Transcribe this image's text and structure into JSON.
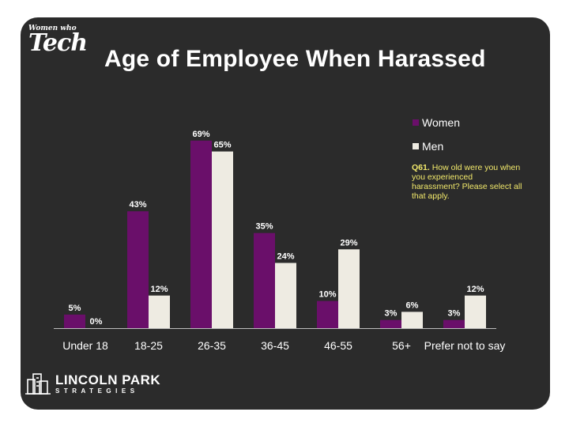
{
  "title": "Age of Employee When Harassed",
  "brand": {
    "line1": "Women who",
    "line2": "Tech"
  },
  "legend": [
    {
      "label": "Women",
      "color": "#6a0f6a"
    },
    {
      "label": "Men",
      "color": "#eeebe2"
    }
  ],
  "note": {
    "label": "Q61.",
    "text": "How old were you when you experienced harassment? Please select all that apply."
  },
  "footer": {
    "line1": "LINCOLN PARK",
    "line2": "STRATEGIES"
  },
  "chart_data": {
    "type": "bar",
    "title": "Age of Employee When Harassed",
    "categories": [
      "Under 18",
      "18-25",
      "26-35",
      "36-45",
      "46-55",
      "56+",
      "Prefer not to say"
    ],
    "series": [
      {
        "name": "Women",
        "values": [
          5,
          43,
          69,
          35,
          10,
          3,
          3
        ],
        "labels": [
          "5%",
          "43%",
          "69%",
          "35%",
          "10%",
          "3%",
          "3%"
        ],
        "color": "#6a0f6a"
      },
      {
        "name": "Men",
        "values": [
          0,
          12,
          65,
          24,
          29,
          6,
          12
        ],
        "labels": [
          "0%",
          "12%",
          "65%",
          "24%",
          "29%",
          "6%",
          "12%"
        ],
        "color": "#eeebe2"
      }
    ],
    "ylim": [
      0,
      80
    ],
    "grid": false,
    "xlabel": "",
    "ylabel": ""
  }
}
